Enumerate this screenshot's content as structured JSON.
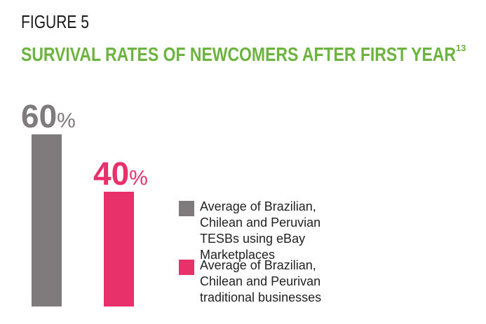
{
  "chart_data": {
    "type": "bar",
    "title": "FIGURE 5",
    "subtitle": "SURVIVAL RATES OF NEWCOMERS AFTER FIRST YEAR",
    "footnote_ref": "13",
    "categories": [
      null
    ],
    "series": [
      {
        "name": "Average of Brazilian, Chilean and Peruvian TESBs using eBay Marketplaces",
        "color": "#7f7a7b",
        "values": [
          60
        ],
        "value_labels": [
          "60%"
        ]
      },
      {
        "name": "Average of Brazilian, Chilean and Peurivan traditional businesses",
        "color": "#e8316a",
        "values": [
          40
        ],
        "value_labels": [
          "40%"
        ]
      }
    ],
    "title_color": "#1a1a1a",
    "subtitle_color": "#6db33f"
  }
}
